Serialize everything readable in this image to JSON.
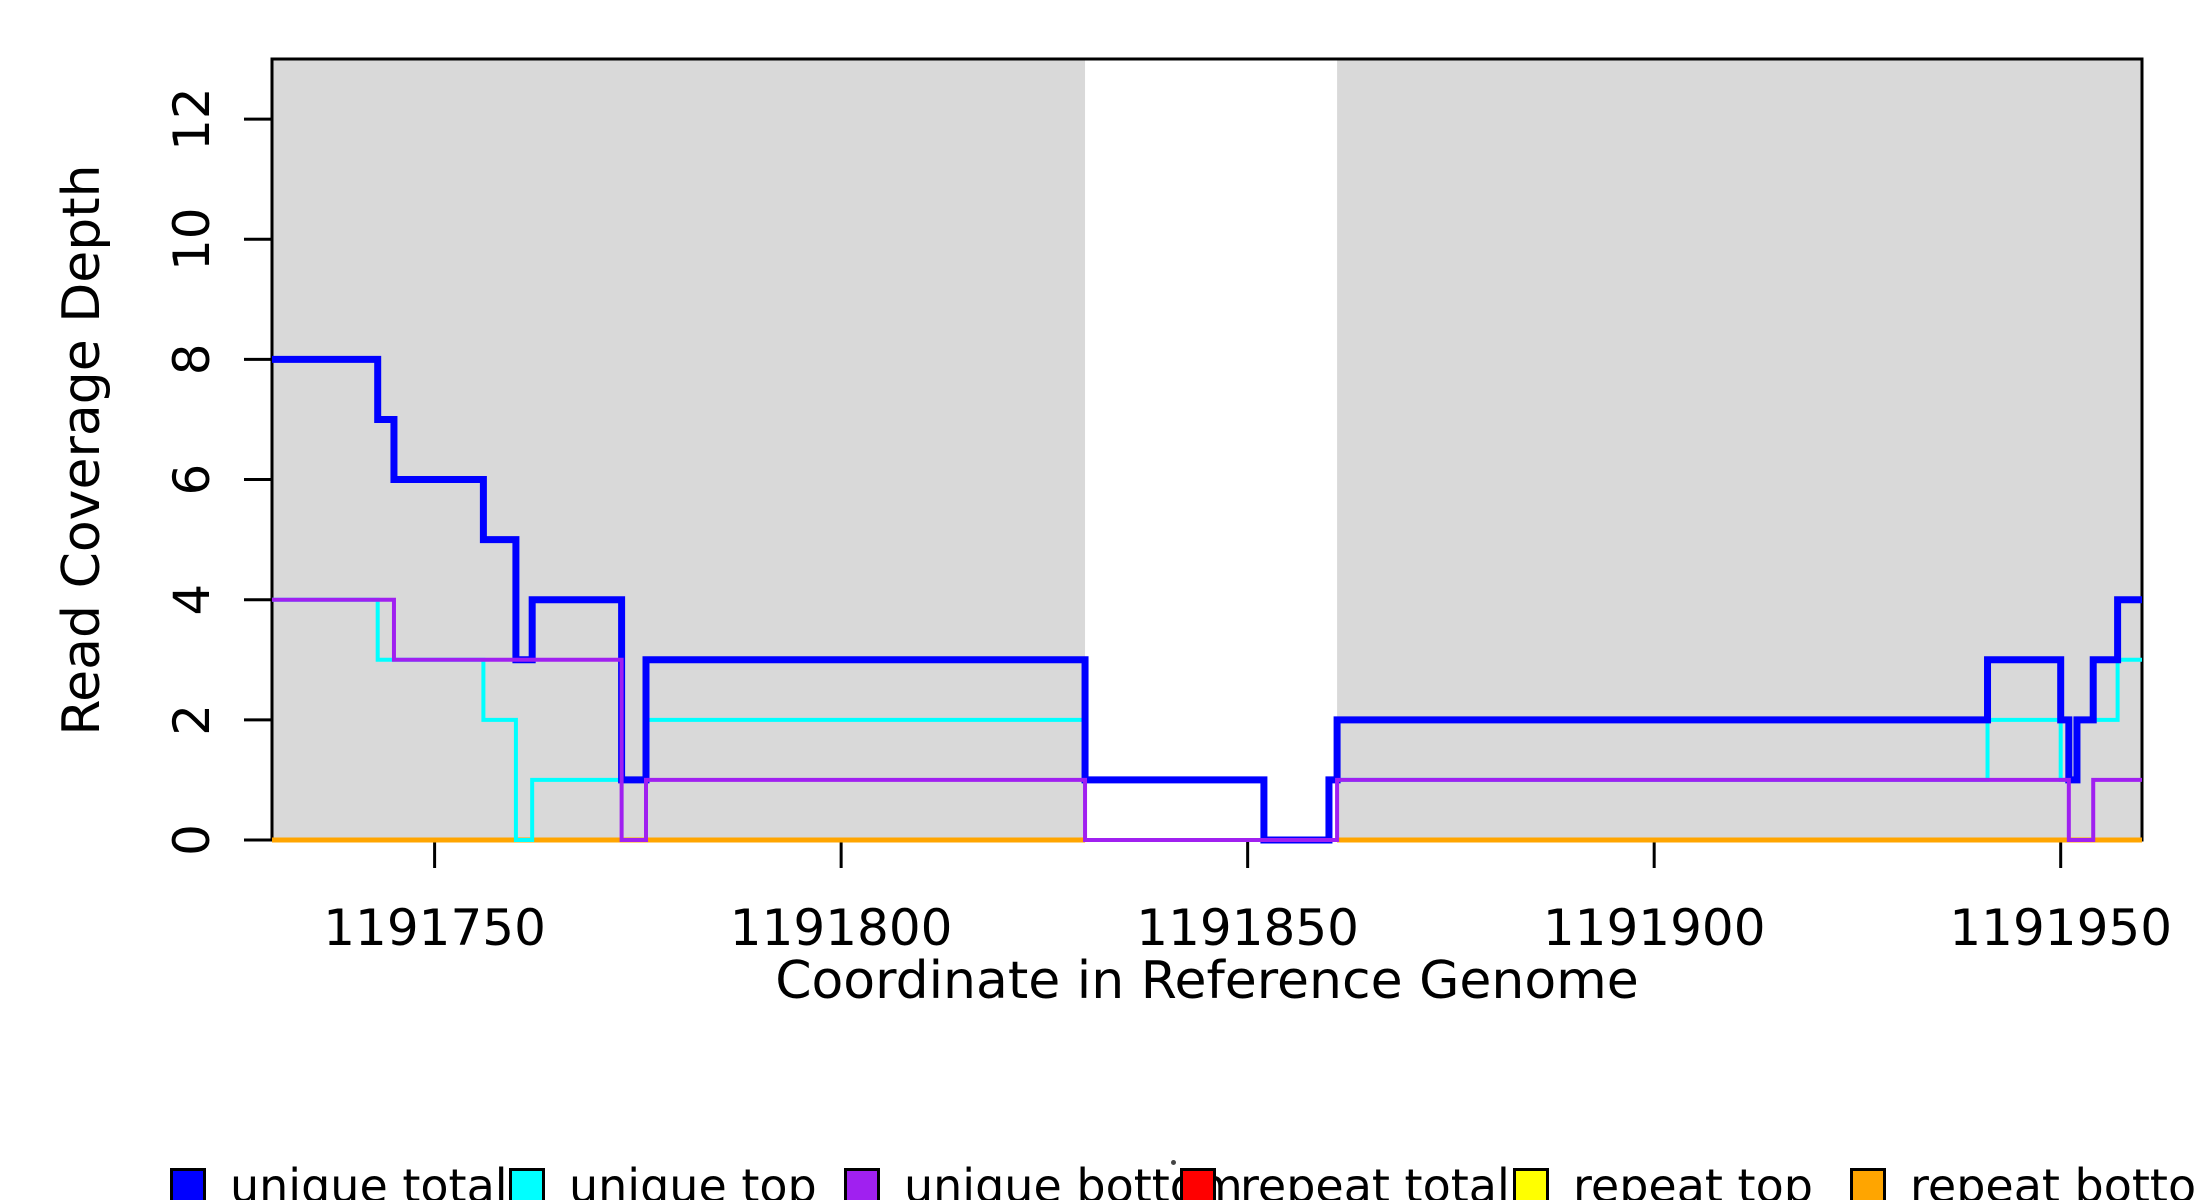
{
  "titles": {
    "y_axis": "Read Coverage Depth",
    "x_axis": "Coordinate in Reference Genome"
  },
  "legend": {
    "items": [
      {
        "label": "unique total",
        "color": "#0000FF"
      },
      {
        "label": "unique top",
        "color": "#00FFFF"
      },
      {
        "label": "unique bottom",
        "color": "#A020F0"
      },
      {
        "label": "repeat total",
        "color": "#FF0000"
      },
      {
        "label": "repeat top",
        "color": "#FFFF00"
      },
      {
        "label": "repeat bottom",
        "color": "#FFA500"
      }
    ],
    "stray_dot_color": "#444444"
  },
  "chart_data": {
    "type": "line",
    "subtype": "step-coverage",
    "title": "",
    "xlabel": "Coordinate in Reference Genome",
    "ylabel": "Read Coverage Depth",
    "x_axis": {
      "lim": [
        1191730,
        1191960
      ],
      "ticks": [
        1191750,
        1191800,
        1191850,
        1191900,
        1191950
      ]
    },
    "y_axis": {
      "lim": [
        0,
        13
      ],
      "ticks": [
        0,
        2,
        4,
        6,
        8,
        10,
        12
      ]
    },
    "grid": false,
    "legend_position": "bottom",
    "shaded_regions": [
      {
        "x0": 1191730,
        "x1": 1191830,
        "color": "#D9D9D9"
      },
      {
        "x0": 1191861,
        "x1": 1191960,
        "color": "#D9D9D9"
      }
    ],
    "series": [
      {
        "name": "repeat total",
        "color": "#FF0000",
        "width": 5,
        "segments": [
          {
            "x0": 1191730,
            "x1": 1191830,
            "y": 0
          },
          {
            "x0": 1191861,
            "x1": 1191960,
            "y": 0
          }
        ]
      },
      {
        "name": "repeat top",
        "color": "#FFFF00",
        "width": 5,
        "segments": [
          {
            "x0": 1191730,
            "x1": 1191830,
            "y": 0
          },
          {
            "x0": 1191861,
            "x1": 1191960,
            "y": 0
          }
        ]
      },
      {
        "name": "repeat bottom",
        "color": "#FFA500",
        "width": 5,
        "segments": [
          {
            "x0": 1191730,
            "x1": 1191830,
            "y": 0
          },
          {
            "x0": 1191861,
            "x1": 1191960,
            "y": 0
          }
        ]
      },
      {
        "name": "unique top",
        "color": "#00FFFF",
        "width": 4,
        "steps": [
          [
            1191730,
            4
          ],
          [
            1191743,
            3
          ],
          [
            1191756,
            2
          ],
          [
            1191760,
            0
          ],
          [
            1191762,
            1
          ],
          [
            1191776,
            2
          ],
          [
            1191830,
            1
          ],
          [
            1191852,
            0
          ],
          [
            1191860,
            1
          ],
          [
            1191941,
            2
          ],
          [
            1191950,
            1
          ],
          [
            1191952,
            2
          ],
          [
            1191957,
            3
          ],
          [
            1191960,
            null
          ]
        ]
      },
      {
        "name": "unique total",
        "color": "#0000FF",
        "width": 7,
        "steps": [
          [
            1191730,
            8
          ],
          [
            1191743,
            7
          ],
          [
            1191745,
            6
          ],
          [
            1191756,
            5
          ],
          [
            1191760,
            3
          ],
          [
            1191762,
            4
          ],
          [
            1191773,
            1
          ],
          [
            1191776,
            3
          ],
          [
            1191830,
            1
          ],
          [
            1191852,
            0
          ],
          [
            1191860,
            1
          ],
          [
            1191861,
            2
          ],
          [
            1191941,
            3
          ],
          [
            1191950,
            2
          ],
          [
            1191951,
            1
          ],
          [
            1191952,
            2
          ],
          [
            1191954,
            3
          ],
          [
            1191957,
            4
          ],
          [
            1191960,
            null
          ]
        ]
      },
      {
        "name": "unique bottom",
        "color": "#A020F0",
        "width": 4,
        "steps": [
          [
            1191730,
            4
          ],
          [
            1191745,
            3
          ],
          [
            1191773,
            0
          ],
          [
            1191776,
            1
          ],
          [
            1191830,
            0
          ],
          [
            1191861,
            1
          ],
          [
            1191951,
            0
          ],
          [
            1191954,
            1
          ],
          [
            1191960,
            null
          ]
        ]
      }
    ]
  }
}
